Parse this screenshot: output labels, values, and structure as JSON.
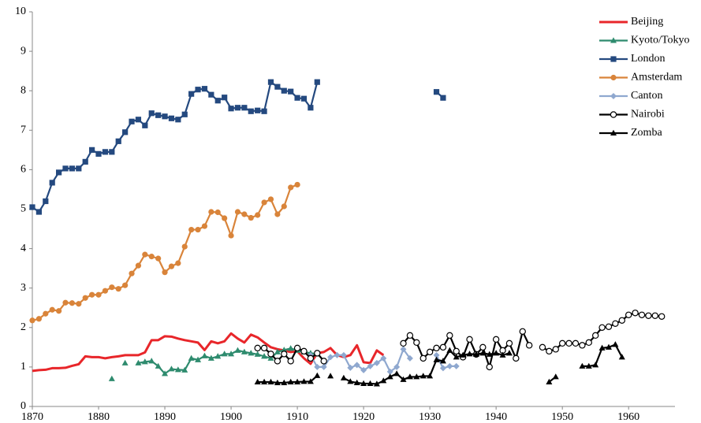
{
  "chart_data": {
    "type": "line",
    "x": [
      1870,
      1871,
      1872,
      1873,
      1874,
      1875,
      1876,
      1877,
      1878,
      1879,
      1880,
      1881,
      1882,
      1883,
      1884,
      1885,
      1886,
      1887,
      1888,
      1889,
      1890,
      1891,
      1892,
      1893,
      1894,
      1895,
      1896,
      1897,
      1898,
      1899,
      1900,
      1901,
      1902,
      1903,
      1904,
      1905,
      1906,
      1907,
      1908,
      1909,
      1910,
      1911,
      1912,
      1913,
      1914,
      1915,
      1916,
      1917,
      1918,
      1919,
      1920,
      1921,
      1922,
      1923,
      1924,
      1925,
      1926,
      1927,
      1928,
      1929,
      1930,
      1931,
      1932,
      1933,
      1934,
      1935,
      1936,
      1937,
      1938,
      1939,
      1940,
      1941,
      1942,
      1943,
      1944,
      1945,
      1946,
      1947,
      1948,
      1949,
      1950,
      1951,
      1952,
      1953,
      1954,
      1955,
      1956,
      1957,
      1958,
      1959,
      1960,
      1961,
      1962,
      1963,
      1964,
      1965
    ],
    "xlim": [
      1870,
      1967
    ],
    "xticks": [
      1870,
      1880,
      1890,
      1900,
      1910,
      1920,
      1930,
      1940,
      1950,
      1960
    ],
    "ylim": [
      0,
      10
    ],
    "yticks": [
      0,
      1,
      2,
      3,
      4,
      5,
      6,
      7,
      8,
      9,
      10
    ],
    "legend": "upper-right",
    "series": [
      {
        "name": "Beijing",
        "color": "#e8262a",
        "marker": "none",
        "values": [
          0.9,
          0.92,
          0.93,
          0.97,
          0.97,
          0.98,
          1.03,
          1.07,
          1.27,
          1.25,
          1.25,
          1.22,
          1.25,
          1.27,
          1.3,
          1.3,
          1.3,
          1.37,
          1.68,
          1.68,
          1.78,
          1.77,
          1.72,
          1.68,
          1.65,
          1.62,
          1.43,
          1.65,
          1.6,
          1.65,
          1.85,
          1.72,
          1.62,
          1.82,
          1.75,
          1.62,
          1.5,
          1.45,
          1.42,
          1.38,
          1.4,
          1.22,
          1.08,
          1.35,
          1.38,
          1.48,
          1.3,
          1.25,
          1.3,
          1.55,
          1.12,
          1.1,
          1.42,
          1.3,
          null,
          null,
          null,
          null,
          null,
          null,
          null,
          null,
          null,
          null,
          null,
          null,
          null,
          null,
          null,
          null,
          null,
          null,
          null,
          null,
          null,
          null,
          null,
          null,
          null,
          null,
          null,
          null,
          null,
          null,
          null,
          null,
          null,
          null,
          null,
          null,
          null,
          null,
          null,
          null,
          null,
          null
        ]
      },
      {
        "name": "Kyoto/Tokyo",
        "color": "#2e8b6e",
        "marker": "triangle",
        "values": [
          null,
          null,
          null,
          null,
          null,
          null,
          null,
          null,
          null,
          null,
          null,
          null,
          0.7,
          null,
          1.1,
          null,
          1.1,
          1.13,
          1.15,
          1.02,
          0.83,
          0.95,
          0.93,
          0.92,
          1.22,
          1.18,
          1.28,
          1.22,
          1.27,
          1.33,
          1.33,
          1.42,
          1.38,
          1.35,
          1.32,
          1.27,
          1.22,
          1.38,
          1.43,
          1.47,
          1.42,
          1.38,
          1.35,
          1.33,
          null,
          null,
          null,
          null,
          null,
          null,
          null,
          null,
          null,
          null,
          null,
          null,
          null,
          null,
          null,
          null,
          null,
          null,
          null,
          null,
          null,
          null,
          null,
          null,
          null,
          null,
          null,
          null,
          null,
          null,
          null,
          null,
          null,
          null,
          null,
          null,
          null,
          null,
          null,
          null,
          null,
          null,
          null,
          null,
          null,
          null,
          null,
          null,
          null,
          null,
          null,
          null
        ]
      },
      {
        "name": "London",
        "color": "#24497f",
        "marker": "square",
        "values": [
          5.05,
          4.93,
          5.2,
          5.67,
          5.93,
          6.03,
          6.03,
          6.03,
          6.2,
          6.5,
          6.4,
          6.45,
          6.45,
          6.72,
          6.95,
          7.22,
          7.27,
          7.12,
          7.43,
          7.38,
          7.35,
          7.3,
          7.27,
          7.4,
          7.92,
          8.03,
          8.05,
          7.9,
          7.75,
          7.83,
          7.55,
          7.57,
          7.57,
          7.48,
          7.5,
          7.48,
          8.22,
          8.1,
          8.0,
          7.98,
          7.82,
          7.8,
          7.57,
          8.22,
          null,
          null,
          null,
          null,
          null,
          null,
          null,
          null,
          null,
          null,
          null,
          null,
          null,
          null,
          null,
          null,
          null,
          7.97,
          7.82,
          null,
          null,
          null,
          null,
          null,
          null,
          null,
          null,
          null,
          null,
          null,
          null,
          null,
          null,
          null,
          null,
          null,
          null,
          null,
          null,
          null,
          null,
          null,
          null,
          null,
          null,
          null,
          null,
          null,
          null,
          null,
          null,
          null
        ]
      },
      {
        "name": "Amsterdam",
        "color": "#d9843a",
        "marker": "circle",
        "values": [
          2.18,
          2.22,
          2.35,
          2.45,
          2.42,
          2.63,
          2.62,
          2.6,
          2.75,
          2.83,
          2.83,
          2.93,
          3.02,
          2.98,
          3.07,
          3.37,
          3.57,
          3.85,
          3.8,
          3.75,
          3.4,
          3.55,
          3.63,
          4.05,
          4.48,
          4.48,
          4.57,
          4.93,
          4.92,
          4.77,
          4.33,
          4.93,
          4.87,
          4.78,
          4.85,
          5.17,
          5.25,
          4.87,
          5.07,
          5.55,
          5.62,
          null,
          null,
          null,
          null,
          null,
          null,
          null,
          null,
          null,
          null,
          null,
          null,
          null,
          null,
          null,
          null,
          null,
          null,
          null,
          null,
          null,
          null,
          null,
          null,
          null,
          null,
          null,
          null,
          null,
          null,
          null,
          null,
          null,
          null,
          null,
          null,
          null,
          null,
          null,
          null,
          null,
          null,
          null,
          null,
          null,
          null,
          null,
          null,
          null,
          null,
          null,
          null,
          null,
          null,
          null
        ]
      },
      {
        "name": "Canton",
        "color": "#8fa8cf",
        "marker": "diamond",
        "values": [
          null,
          null,
          null,
          null,
          null,
          null,
          null,
          null,
          null,
          null,
          null,
          null,
          null,
          null,
          null,
          null,
          null,
          null,
          null,
          null,
          null,
          null,
          null,
          null,
          null,
          null,
          null,
          null,
          null,
          null,
          null,
          null,
          null,
          null,
          null,
          null,
          null,
          null,
          null,
          null,
          null,
          null,
          1.3,
          1.0,
          1.0,
          1.25,
          1.3,
          1.3,
          0.98,
          1.05,
          0.92,
          1.02,
          1.1,
          1.22,
          0.88,
          1.0,
          1.45,
          1.22,
          null,
          null,
          null,
          1.3,
          0.97,
          1.02,
          1.02,
          null,
          null,
          null,
          null,
          null,
          null,
          null,
          null,
          null,
          null,
          null,
          null,
          null,
          null,
          null,
          null,
          null,
          null,
          null,
          null,
          null,
          null,
          null,
          null,
          null,
          null,
          null,
          null,
          null,
          null,
          null
        ]
      },
      {
        "name": "Nairobi",
        "color": "#000000",
        "marker": "circle-open",
        "values": [
          null,
          null,
          null,
          null,
          null,
          null,
          null,
          null,
          null,
          null,
          null,
          null,
          null,
          null,
          null,
          null,
          null,
          null,
          null,
          null,
          null,
          null,
          null,
          null,
          null,
          null,
          null,
          null,
          null,
          null,
          null,
          null,
          null,
          null,
          1.48,
          1.48,
          1.33,
          1.15,
          1.33,
          1.15,
          1.48,
          1.4,
          1.22,
          1.35,
          1.15,
          null,
          null,
          null,
          null,
          null,
          null,
          null,
          null,
          null,
          null,
          null,
          1.6,
          1.8,
          1.62,
          1.22,
          1.38,
          1.48,
          1.5,
          1.8,
          1.4,
          1.25,
          1.7,
          1.32,
          1.5,
          1.0,
          1.7,
          1.42,
          1.6,
          1.22,
          1.9,
          1.55,
          null,
          1.5,
          1.4,
          1.45,
          1.6,
          1.6,
          1.6,
          1.55,
          1.62,
          1.8,
          2.0,
          2.02,
          2.1,
          2.18,
          2.32,
          2.37,
          2.32,
          2.3,
          2.3,
          2.28
        ]
      },
      {
        "name": "Zomba",
        "color": "#000000",
        "marker": "triangle",
        "values": [
          null,
          null,
          null,
          null,
          null,
          null,
          null,
          null,
          null,
          null,
          null,
          null,
          null,
          null,
          null,
          null,
          null,
          null,
          null,
          null,
          null,
          null,
          null,
          null,
          null,
          null,
          null,
          null,
          null,
          null,
          null,
          null,
          null,
          null,
          0.62,
          0.62,
          0.62,
          0.6,
          0.6,
          0.62,
          0.62,
          0.63,
          0.63,
          0.78,
          null,
          0.77,
          null,
          0.72,
          0.63,
          0.6,
          0.58,
          0.58,
          0.57,
          0.65,
          0.75,
          0.83,
          0.68,
          0.75,
          0.75,
          0.77,
          0.77,
          1.18,
          1.15,
          1.42,
          1.25,
          1.3,
          1.33,
          1.32,
          1.35,
          1.32,
          1.35,
          1.3,
          1.35,
          null,
          null,
          null,
          null,
          null,
          0.62,
          0.75,
          null,
          null,
          null,
          1.02,
          1.02,
          1.05,
          1.48,
          1.5,
          1.57,
          1.25,
          null,
          null,
          null,
          null,
          null,
          null
        ]
      }
    ]
  }
}
